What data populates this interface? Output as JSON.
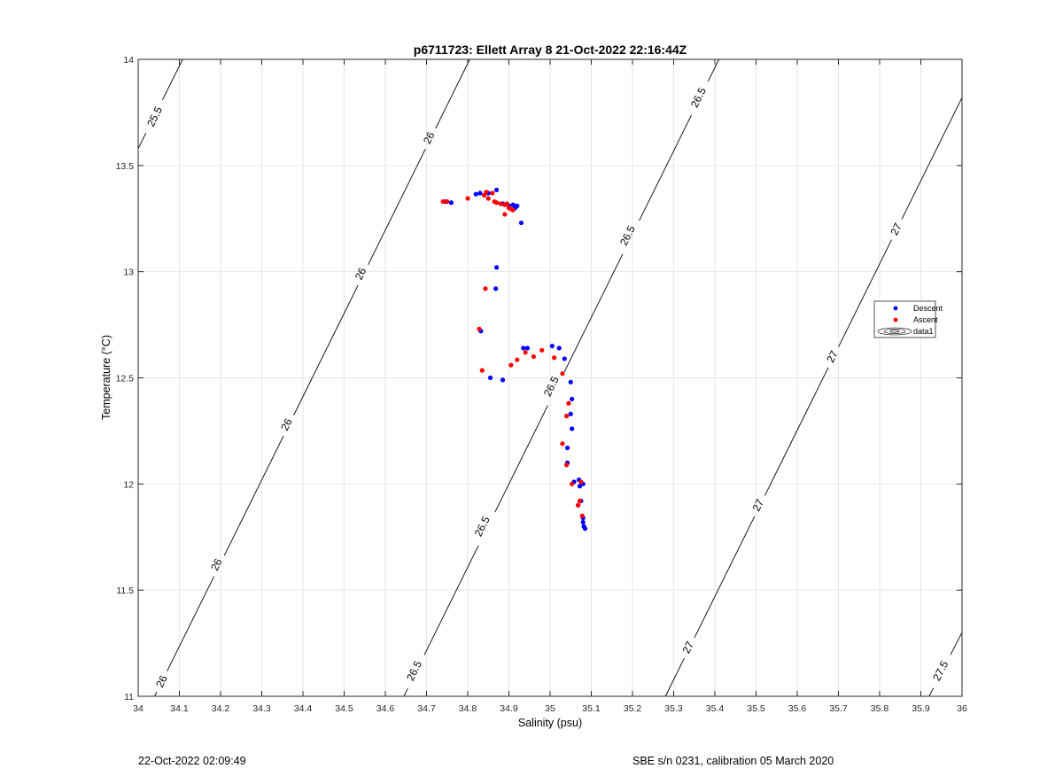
{
  "footer": {
    "left": "22-Oct-2022 02:09:49",
    "right": "SBE s/n 0231, calibration 05 March 2020"
  },
  "chart_data": {
    "type": "scatter",
    "title": "p6711723: Ellett Array 8 21-Oct-2022 22:16:44Z",
    "xlabel": "Salinity (psu)",
    "ylabel": "Temperature (°C)",
    "xlim": [
      34,
      36
    ],
    "ylim": [
      11,
      14
    ],
    "xticks": [
      34,
      34.1,
      34.2,
      34.3,
      34.4,
      34.5,
      34.6,
      34.7,
      34.8,
      34.9,
      35,
      35.1,
      35.2,
      35.3,
      35.4,
      35.5,
      35.6,
      35.7,
      35.8,
      35.9,
      36
    ],
    "yticks": [
      11,
      11.5,
      12,
      12.5,
      13,
      13.5,
      14
    ],
    "grid": true,
    "legend_position": "right",
    "legend": [
      "Descent",
      "Ascent",
      "data1"
    ],
    "colors": {
      "descent": "#0000ff",
      "ascent": "#ff0000",
      "contour": "#000000",
      "grid": "#e6e6e6"
    },
    "series": [
      {
        "name": "Descent",
        "points": [
          [
            34.745,
            13.33
          ],
          [
            34.76,
            13.325
          ],
          [
            34.82,
            13.365
          ],
          [
            34.83,
            13.37
          ],
          [
            34.85,
            13.37
          ],
          [
            34.87,
            13.385
          ],
          [
            34.885,
            13.32
          ],
          [
            34.9,
            13.31
          ],
          [
            34.91,
            13.315
          ],
          [
            34.915,
            13.3
          ],
          [
            34.92,
            13.31
          ],
          [
            34.93,
            13.23
          ],
          [
            34.87,
            13.02
          ],
          [
            34.868,
            12.92
          ],
          [
            34.832,
            12.72
          ],
          [
            34.855,
            12.5
          ],
          [
            34.885,
            12.49
          ],
          [
            34.935,
            12.64
          ],
          [
            34.945,
            12.64
          ],
          [
            35.005,
            12.65
          ],
          [
            35.022,
            12.64
          ],
          [
            35.035,
            12.59
          ],
          [
            35.05,
            12.48
          ],
          [
            35.053,
            12.4
          ],
          [
            35.05,
            12.33
          ],
          [
            35.053,
            12.26
          ],
          [
            35.042,
            12.17
          ],
          [
            35.042,
            12.1
          ],
          [
            35.058,
            12.01
          ],
          [
            35.07,
            12.02
          ],
          [
            35.08,
            12.0
          ],
          [
            35.072,
            11.99
          ],
          [
            35.075,
            11.92
          ],
          [
            35.068,
            11.9
          ],
          [
            35.08,
            11.84
          ],
          [
            35.08,
            11.82
          ],
          [
            35.082,
            11.8
          ],
          [
            35.085,
            11.79
          ]
        ]
      },
      {
        "name": "Ascent",
        "points": [
          [
            34.74,
            13.33
          ],
          [
            34.75,
            13.33
          ],
          [
            34.8,
            13.345
          ],
          [
            34.84,
            13.36
          ],
          [
            34.845,
            13.375
          ],
          [
            34.86,
            13.37
          ],
          [
            34.85,
            13.345
          ],
          [
            34.865,
            13.33
          ],
          [
            34.87,
            13.325
          ],
          [
            34.88,
            13.32
          ],
          [
            34.89,
            13.315
          ],
          [
            34.895,
            13.32
          ],
          [
            34.9,
            13.3
          ],
          [
            34.905,
            13.295
          ],
          [
            34.91,
            13.29
          ],
          [
            34.89,
            13.27
          ],
          [
            34.843,
            12.92
          ],
          [
            34.828,
            12.73
          ],
          [
            34.835,
            12.535
          ],
          [
            34.905,
            12.56
          ],
          [
            34.92,
            12.585
          ],
          [
            34.94,
            12.62
          ],
          [
            34.96,
            12.6
          ],
          [
            34.98,
            12.63
          ],
          [
            35.01,
            12.595
          ],
          [
            35.03,
            12.52
          ],
          [
            35.045,
            12.38
          ],
          [
            35.04,
            12.32
          ],
          [
            35.03,
            12.19
          ],
          [
            35.04,
            12.09
          ],
          [
            35.053,
            12.0
          ],
          [
            35.075,
            12.01
          ],
          [
            35.072,
            11.92
          ],
          [
            35.068,
            11.9
          ],
          [
            35.078,
            11.85
          ]
        ]
      }
    ],
    "contours": [
      {
        "level": "25.5",
        "start": [
          34.0,
          13.58
        ],
        "end": [
          34.108,
          14.0
        ],
        "labels": [
          [
            34.04,
            13.73
          ]
        ]
      },
      {
        "level": "26",
        "start": [
          34.04,
          11.0
        ],
        "end": [
          34.805,
          14.0
        ],
        "labels": [
          [
            34.057,
            11.07
          ],
          [
            34.19,
            11.62
          ],
          [
            34.36,
            12.28
          ],
          [
            34.54,
            12.99
          ],
          [
            34.706,
            13.63
          ]
        ]
      },
      {
        "level": "26.5",
        "start": [
          34.645,
          11.0
        ],
        "end": [
          35.41,
          14.0
        ],
        "labels": [
          [
            34.67,
            11.12
          ],
          [
            34.835,
            11.8
          ],
          [
            35.003,
            12.46
          ],
          [
            35.188,
            13.17
          ],
          [
            35.36,
            13.82
          ]
        ]
      },
      {
        "level": "27",
        "start": [
          35.28,
          11.0
        ],
        "end": [
          36.0,
          13.82
        ],
        "labels": [
          [
            35.335,
            11.23
          ],
          [
            35.505,
            11.9
          ],
          [
            35.685,
            12.6
          ],
          [
            35.84,
            13.2
          ]
        ]
      },
      {
        "level": "27.5",
        "start": [
          35.92,
          11.0
        ],
        "end": [
          36.0,
          11.3
        ],
        "labels": [
          [
            35.948,
            11.12
          ]
        ]
      }
    ]
  }
}
